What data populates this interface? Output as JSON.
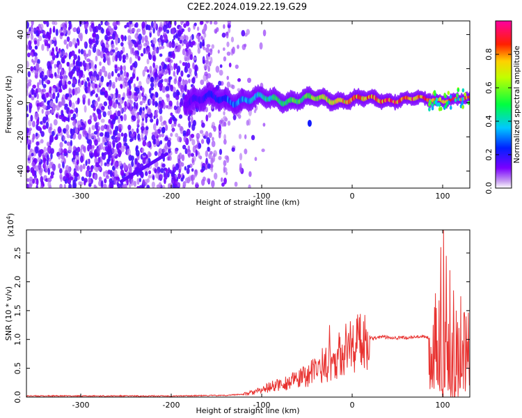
{
  "title": "C2E2.2024.019.22.19.G29",
  "chart_data": [
    {
      "type": "heatmap",
      "xlabel": "Height of straight line (km)",
      "ylabel": "Frequency (Hz)",
      "xlim": [
        -360,
        130
      ],
      "ylim": [
        -50,
        48
      ],
      "xticks": [
        -300,
        -200,
        -100,
        0,
        100
      ],
      "yticks": [
        -40,
        -20,
        0,
        20,
        40
      ],
      "colorbar": {
        "label": "Normalized spectral amplitude",
        "range": [
          0.0,
          1.0
        ],
        "ticks": [
          0.0,
          0.2,
          0.4,
          0.6,
          0.8
        ],
        "colormap": "hsv-rainbow (violet → blue → cyan → green → yellow → red → magenta)"
      },
      "features": {
        "noise_region_x": [
          -360,
          -110
        ],
        "signal_band_start_x": -185,
        "signal_band_freq_hz": 2,
        "secondary_streak": {
          "x": [
            -255,
            -205
          ],
          "y": [
            -46,
            -30
          ]
        }
      }
    },
    {
      "type": "line",
      "xlabel": "Height of straight line (km)",
      "ylabel": "SNR (10 * v/v)",
      "yscale_label": "(x10",
      "yscale_exp": "4",
      "yscale_close": ")",
      "xlim": [
        -360,
        130
      ],
      "ylim": [
        0,
        2.9
      ],
      "xticks": [
        -300,
        -200,
        -100,
        0,
        100
      ],
      "yticks": [
        0.0,
        0.5,
        1.0,
        1.5,
        2.0,
        2.5
      ],
      "ytick_labels": [
        "0.0",
        "0.5",
        "1.0",
        "1.5",
        "2.0",
        "2.5"
      ],
      "grid": false,
      "series": [
        {
          "color": "#e8312f",
          "x": [
            -360,
            -300,
            -200,
            -140,
            -120,
            -110,
            -100,
            -90,
            -80,
            -70,
            -60,
            -50,
            -45,
            -40,
            -30,
            -20,
            -10,
            0,
            10,
            20,
            30,
            40,
            50,
            60,
            70,
            80,
            90,
            95,
            100,
            105,
            110,
            115,
            120,
            125,
            130
          ],
          "values": [
            0.02,
            0.02,
            0.02,
            0.03,
            0.05,
            0.08,
            0.12,
            0.18,
            0.22,
            0.26,
            0.3,
            0.38,
            0.42,
            0.48,
            0.55,
            0.65,
            0.8,
            0.93,
            0.98,
            1.02,
            1.04,
            1.04,
            1.03,
            1.03,
            1.04,
            1.04,
            1.03,
            0.9,
            0.7,
            0.8,
            0.6,
            0.65,
            0.9,
            1.0,
            1.0
          ],
          "spikes": [
            [
              -25,
              1.25
            ],
            [
              -33,
              0.85
            ],
            [
              -15,
              0.9
            ],
            [
              -5,
              0.85
            ],
            [
              85,
              1.5
            ],
            [
              92,
              1.8
            ],
            [
              98,
              2.6
            ],
            [
              101,
              2.9
            ],
            [
              104,
              2.45
            ],
            [
              108,
              2.2
            ],
            [
              112,
              1.85
            ],
            [
              115,
              1.5
            ],
            [
              118,
              1.2
            ]
          ]
        }
      ]
    }
  ]
}
